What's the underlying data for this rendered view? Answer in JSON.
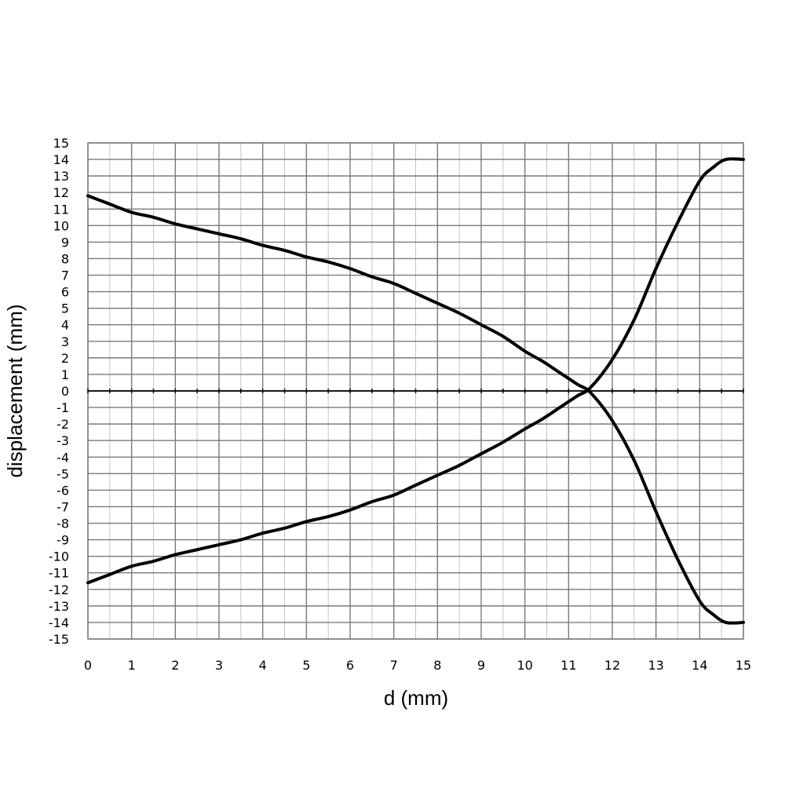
{
  "chart_data": {
    "type": "line",
    "title": "",
    "xlabel": "d (mm)",
    "ylabel": "displacement (mm)",
    "xlim": [
      0,
      15
    ],
    "ylim": [
      -15,
      15
    ],
    "x_ticks": [
      "0",
      "1",
      "2",
      "3",
      "4",
      "5",
      "6",
      "7",
      "8",
      "9",
      "10",
      "11",
      "12",
      "13",
      "14",
      "15"
    ],
    "y_ticks": [
      "15",
      "14",
      "13",
      "12",
      "11",
      "10",
      "9",
      "8",
      "7",
      "6",
      "5",
      "4",
      "3",
      "2",
      "1",
      "0",
      "-1",
      "-2",
      "-3",
      "-4",
      "-5",
      "-6",
      "-7",
      "-8",
      "-9",
      "-10",
      "-11",
      "-12",
      "-13",
      "-14",
      "-15"
    ],
    "grid": true,
    "legend": "none",
    "series": [
      {
        "x": [
          0,
          0.5,
          1,
          1.5,
          2,
          2.5,
          3,
          3.5,
          4,
          4.5,
          5,
          5.5,
          6,
          6.5,
          7,
          7.5,
          8,
          8.5,
          9,
          9.5,
          10,
          10.4,
          10.8,
          11.2,
          11.5,
          12,
          12.5,
          13,
          13.5,
          14,
          14.3,
          14.6,
          15
        ],
        "y": [
          11.8,
          11.3,
          10.8,
          10.5,
          10.1,
          9.8,
          9.5,
          9.2,
          8.8,
          8.5,
          8.1,
          7.8,
          7.4,
          6.9,
          6.5,
          5.9,
          5.3,
          4.7,
          4.0,
          3.3,
          2.4,
          1.8,
          1.1,
          0.4,
          -0.1,
          -1.8,
          -4.2,
          -7.3,
          -10.2,
          -12.7,
          -13.5,
          -14.0,
          -14.0
        ]
      },
      {
        "x": [
          0,
          0.5,
          1,
          1.5,
          2,
          2.5,
          3,
          3.5,
          4,
          4.5,
          5,
          5.5,
          6,
          6.5,
          7,
          7.5,
          8,
          8.5,
          9,
          9.5,
          10,
          10.4,
          10.8,
          11.2,
          11.5,
          12,
          12.5,
          13,
          13.5,
          14,
          14.3,
          14.6,
          15
        ],
        "y": [
          -11.6,
          -11.1,
          -10.6,
          -10.3,
          -9.9,
          -9.6,
          -9.3,
          -9.0,
          -8.6,
          -8.3,
          -7.9,
          -7.6,
          -7.2,
          -6.7,
          -6.3,
          -5.7,
          -5.1,
          -4.5,
          -3.8,
          -3.1,
          -2.3,
          -1.7,
          -1.0,
          -0.3,
          0.2,
          1.9,
          4.3,
          7.4,
          10.2,
          12.7,
          13.5,
          14.0,
          14.0
        ]
      }
    ]
  }
}
